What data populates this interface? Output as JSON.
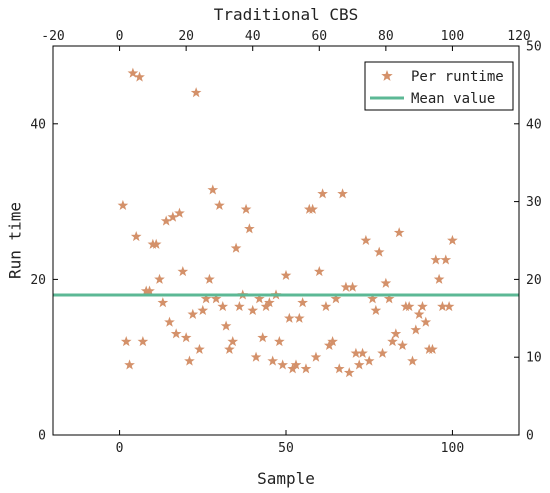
{
  "chart_data": {
    "type": "scatter",
    "top_xlabel": "Traditional CBS",
    "xlabel": "Sample",
    "ylabel": "Run time",
    "xlim": [
      -20,
      120
    ],
    "ylim": [
      0,
      50
    ],
    "bottom_ticks": [
      "0",
      "50",
      "100"
    ],
    "top_ticks": [
      "-20",
      "0",
      "20",
      "40",
      "60",
      "80",
      "100",
      "120"
    ],
    "left_ticks": [
      "0",
      "20",
      "40"
    ],
    "right_ticks": [
      "0",
      "10",
      "20",
      "30",
      "40",
      "50"
    ],
    "grid": false,
    "legend_position": "top-right",
    "mean_value": 18,
    "colors": {
      "points": "#D4916A",
      "mean_line": "#5CB895"
    },
    "series": [
      {
        "name": "Per runtime",
        "type": "scatter",
        "marker": "star",
        "points": [
          [
            1,
            29.5
          ],
          [
            2,
            12
          ],
          [
            3,
            9
          ],
          [
            4,
            46.5
          ],
          [
            5,
            25.5
          ],
          [
            6,
            46
          ],
          [
            7,
            12
          ],
          [
            8,
            18.5
          ],
          [
            9,
            18.5
          ],
          [
            10,
            24.5
          ],
          [
            11,
            24.5
          ],
          [
            12,
            20
          ],
          [
            13,
            17
          ],
          [
            14,
            27.5
          ],
          [
            15,
            14.5
          ],
          [
            16,
            28
          ],
          [
            17,
            13
          ],
          [
            18,
            28.5
          ],
          [
            19,
            21
          ],
          [
            20,
            12.5
          ],
          [
            21,
            9.5
          ],
          [
            22,
            15.5
          ],
          [
            23,
            44
          ],
          [
            24,
            11
          ],
          [
            25,
            16
          ],
          [
            26,
            17.5
          ],
          [
            27,
            20
          ],
          [
            28,
            31.5
          ],
          [
            29,
            17.5
          ],
          [
            30,
            29.5
          ],
          [
            31,
            16.5
          ],
          [
            32,
            14
          ],
          [
            33,
            11
          ],
          [
            34,
            12
          ],
          [
            35,
            24
          ],
          [
            36,
            16.5
          ],
          [
            37,
            18
          ],
          [
            38,
            29
          ],
          [
            39,
            26.5
          ],
          [
            40,
            16
          ],
          [
            41,
            10
          ],
          [
            42,
            17.5
          ],
          [
            43,
            12.5
          ],
          [
            44,
            16.5
          ],
          [
            45,
            17
          ],
          [
            46,
            9.5
          ],
          [
            47,
            18
          ],
          [
            48,
            12
          ],
          [
            49,
            9
          ],
          [
            50,
            20.5
          ],
          [
            51,
            15
          ],
          [
            52,
            8.5
          ],
          [
            53,
            9
          ],
          [
            54,
            15
          ],
          [
            55,
            17
          ],
          [
            56,
            8.5
          ],
          [
            57,
            29
          ],
          [
            58,
            29
          ],
          [
            59,
            10
          ],
          [
            60,
            21
          ],
          [
            61,
            31
          ],
          [
            62,
            16.5
          ],
          [
            63,
            11.5
          ],
          [
            64,
            12
          ],
          [
            65,
            17.5
          ],
          [
            66,
            8.5
          ],
          [
            67,
            31
          ],
          [
            68,
            19
          ],
          [
            69,
            8
          ],
          [
            70,
            19
          ],
          [
            71,
            10.5
          ],
          [
            72,
            9
          ],
          [
            73,
            10.5
          ],
          [
            74,
            25
          ],
          [
            75,
            9.5
          ],
          [
            76,
            17.5
          ],
          [
            77,
            16
          ],
          [
            78,
            23.5
          ],
          [
            79,
            10.5
          ],
          [
            80,
            19.5
          ],
          [
            81,
            17.5
          ],
          [
            82,
            12
          ],
          [
            83,
            13
          ],
          [
            84,
            26
          ],
          [
            85,
            11.5
          ],
          [
            86,
            16.5
          ],
          [
            87,
            16.5
          ],
          [
            88,
            9.5
          ],
          [
            89,
            13.5
          ],
          [
            90,
            15.5
          ],
          [
            91,
            16.5
          ],
          [
            92,
            14.5
          ],
          [
            93,
            11
          ],
          [
            94,
            11
          ],
          [
            95,
            22.5
          ],
          [
            96,
            20
          ],
          [
            97,
            16.5
          ],
          [
            98,
            22.5
          ],
          [
            99,
            16.5
          ],
          [
            100,
            25
          ]
        ]
      },
      {
        "name": "Mean value",
        "type": "line",
        "y": 18
      }
    ]
  }
}
